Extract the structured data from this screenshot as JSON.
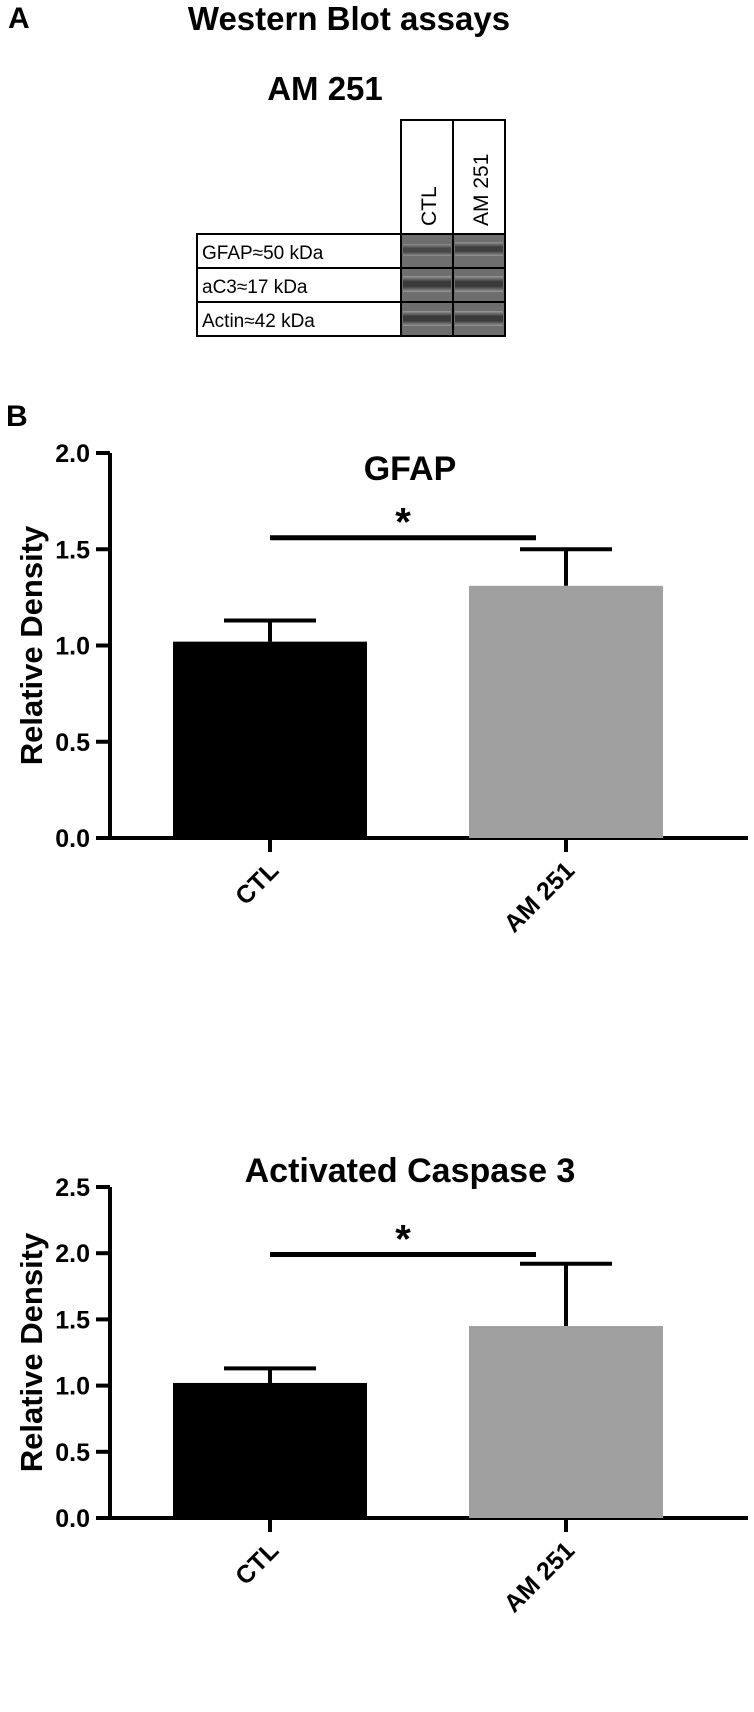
{
  "panel_a": {
    "letter": "A",
    "title": "Western Blot assays",
    "subtitle": "AM 251",
    "lanes": [
      "CTL",
      "AM 251"
    ],
    "bands": [
      "GFAP≈50 kDa",
      "aC3≈17 kDa",
      "Actin≈42 kDa"
    ],
    "blot_colors": {
      "lane_bg": "#6e6e6e",
      "band": "#2f2f2f"
    }
  },
  "panel_b": {
    "letter": "B"
  },
  "chart_data": [
    {
      "type": "bar",
      "title": "GFAP",
      "ylabel": "Relative Density",
      "xlabel": "",
      "categories": [
        "CTL",
        "AM 251"
      ],
      "values": [
        1.02,
        1.31
      ],
      "errors": [
        0.11,
        0.19
      ],
      "colors": [
        "#000000",
        "#a0a0a1"
      ],
      "ylim": [
        0,
        2.0
      ],
      "yticks": [
        "0.0",
        "0.5",
        "1.0",
        "1.5",
        "2.0"
      ],
      "significance": {
        "from": 0,
        "to": 1,
        "label": "*",
        "y": 1.56
      },
      "grid": false
    },
    {
      "type": "bar",
      "title": "Activated  Caspase 3",
      "ylabel": "Relative Density",
      "xlabel": "",
      "categories": [
        "CTL",
        "AM 251"
      ],
      "values": [
        1.02,
        1.45
      ],
      "errors": [
        0.11,
        0.47
      ],
      "colors": [
        "#000000",
        "#a0a0a1"
      ],
      "ylim": [
        0,
        2.5
      ],
      "yticks": [
        "0.0",
        "0.5",
        "1.0",
        "1.5",
        "2.0",
        "2.5"
      ],
      "significance": {
        "from": 0,
        "to": 1,
        "label": "*",
        "y": 1.99
      },
      "grid": false
    }
  ]
}
